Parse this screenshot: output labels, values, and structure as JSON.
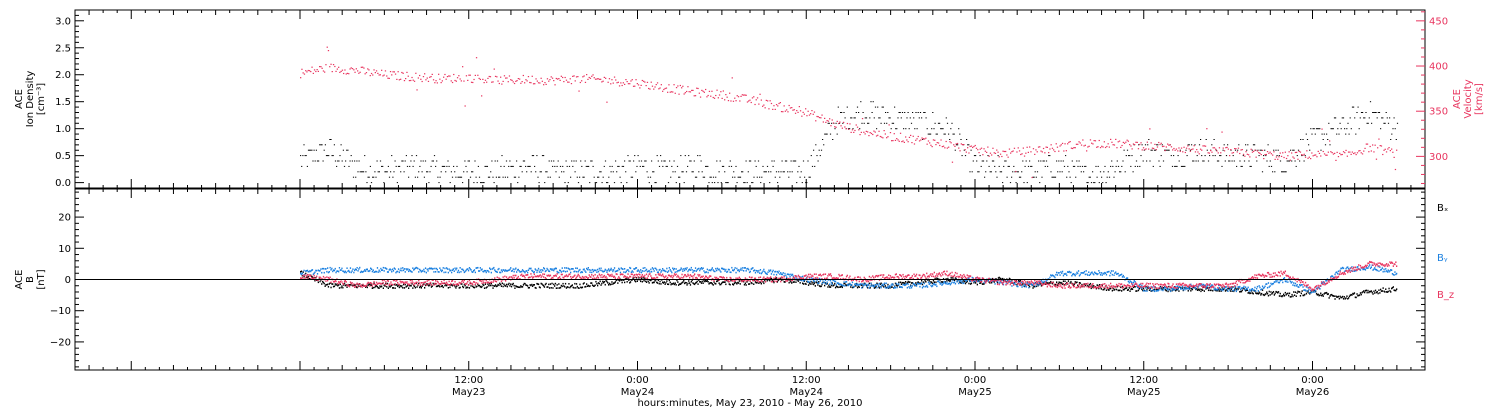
{
  "chart_data": [
    {
      "type": "scatter",
      "panel": "top",
      "ylabel_left": [
        "ACE",
        "Ion Density",
        "[cm⁻³]"
      ],
      "ylabel_right": [
        "ACE",
        "Velocity",
        "[km/s]"
      ],
      "left_axis": {
        "ylim": [
          -0.1,
          3.2
        ],
        "ticks": [
          0.0,
          0.5,
          1.0,
          1.5,
          2.0,
          2.5,
          3.0
        ],
        "tick_labels": [
          "0.0",
          "0.5",
          "1.0",
          "1.5",
          "2.0",
          "2.5",
          "3.0"
        ]
      },
      "right_axis": {
        "ylim": [
          265,
          462
        ],
        "ticks": [
          300,
          350,
          400,
          450
        ],
        "tick_labels": [
          "300",
          "350",
          "400",
          "450"
        ],
        "color": "#e8355f"
      },
      "series": [
        {
          "color": "#000000",
          "axis": "left",
          "x": [
            0,
            2,
            4,
            6,
            8,
            10,
            12,
            14,
            16,
            18,
            20,
            22,
            24,
            26,
            28,
            30,
            32,
            34,
            36,
            38,
            40,
            42,
            44,
            46,
            48,
            50,
            52,
            54,
            56,
            58,
            60,
            62,
            64,
            66,
            68,
            70,
            72,
            74,
            76,
            78
          ],
          "y": [
            0.4,
            0.6,
            0.3,
            0.2,
            0.3,
            0.2,
            0.2,
            0.2,
            0.3,
            0.2,
            0.2,
            0.2,
            0.3,
            0.2,
            0.3,
            0.2,
            0.2,
            0.2,
            0.2,
            1.1,
            1.3,
            1.2,
            1.1,
            1.0,
            0.3,
            0.2,
            0.2,
            0.3,
            0.1,
            0.3,
            0.6,
            0.5,
            0.6,
            0.5,
            0.5,
            0.4,
            0.8,
            1.0,
            1.3,
            1.0
          ]
        }
      ]
    },
    {
      "type": "scatter",
      "panel": "top",
      "axis": "right",
      "color": "#e8355f",
      "x": [
        0,
        2,
        4,
        6,
        8,
        10,
        12,
        14,
        16,
        18,
        20,
        22,
        24,
        26,
        28,
        30,
        32,
        34,
        36,
        38,
        40,
        42,
        44,
        46,
        48,
        50,
        52,
        54,
        56,
        58,
        60,
        62,
        64,
        66,
        68,
        70,
        72,
        74,
        76,
        78
      ],
      "y": [
        392,
        398,
        395,
        390,
        388,
        386,
        387,
        384,
        385,
        384,
        386,
        384,
        381,
        376,
        371,
        368,
        362,
        355,
        348,
        336,
        328,
        322,
        318,
        313,
        307,
        303,
        306,
        310,
        315,
        314,
        312,
        310,
        307,
        305,
        303,
        300,
        302,
        300,
        310,
        303
      ]
    },
    {
      "type": "scatter",
      "panel": "bottom",
      "ylabel": [
        "ACE",
        "B",
        "[nT]"
      ],
      "ylim": [
        -29,
        29
      ],
      "ticks": [
        -20,
        -10,
        0,
        10,
        20
      ],
      "tick_labels": [
        "−20",
        "−10",
        "0",
        "10",
        "20"
      ],
      "zero_line": true,
      "x": [
        0,
        2,
        4,
        6,
        8,
        10,
        12,
        14,
        16,
        18,
        20,
        22,
        24,
        26,
        28,
        30,
        32,
        34,
        36,
        38,
        40,
        42,
        44,
        46,
        48,
        50,
        52,
        54,
        56,
        58,
        60,
        62,
        64,
        66,
        68,
        70,
        72,
        74,
        76,
        78
      ],
      "series": [
        {
          "name": "Bₓ",
          "color": "#000000",
          "values": [
            2,
            -2,
            -2,
            -2,
            -2,
            -2,
            -2,
            -2,
            -2,
            -2,
            -2,
            -1,
            0,
            -1,
            -1,
            -1,
            -1,
            0,
            -1,
            -2,
            -2,
            -2,
            -1,
            0,
            -1,
            0,
            -2,
            -1,
            -2,
            -3,
            -3,
            -3,
            -3,
            -3,
            -4,
            -5,
            -4,
            -6,
            -4,
            -3
          ]
        },
        {
          "name": "Bᵧ",
          "color": "#1b80e0",
          "values": [
            2,
            3,
            3,
            3,
            3,
            3,
            3,
            3,
            3,
            3,
            3,
            3,
            3,
            3,
            3,
            3,
            3,
            2,
            0,
            -1,
            -2,
            -2,
            -2,
            -1,
            0,
            -1,
            -2,
            2,
            2,
            2,
            -3,
            -3,
            -2,
            -3,
            -3,
            0,
            -4,
            3,
            4,
            2
          ]
        },
        {
          "name": "B_z",
          "color": "#e8355f",
          "values": [
            1,
            0,
            -2,
            -1,
            -1,
            -1,
            -1,
            0,
            1,
            1,
            1,
            1,
            1,
            1,
            1,
            0,
            0,
            0,
            1,
            1,
            0,
            1,
            1,
            2,
            0,
            -1,
            -1,
            -2,
            -2,
            -2,
            -2,
            -2,
            -2,
            -2,
            1,
            2,
            -3,
            2,
            5,
            5
          ]
        }
      ],
      "legend": [
        "Bₓ",
        "Bᵧ",
        "B_z"
      ],
      "legend_placement": "right"
    }
  ],
  "x_axis": {
    "range_hours": [
      -16,
      80
    ],
    "major_ticks": [
      12,
      24,
      36,
      48,
      60,
      72
    ],
    "time_labels": [
      "12:00",
      "0:00",
      "12:00",
      "0:00",
      "12:00",
      "0:00"
    ],
    "date_labels": [
      "May23",
      "May24",
      "May24",
      "May25",
      "May25",
      "May26"
    ],
    "xlabel": "hours:minutes, May 23, 2010 - May 26, 2010"
  }
}
